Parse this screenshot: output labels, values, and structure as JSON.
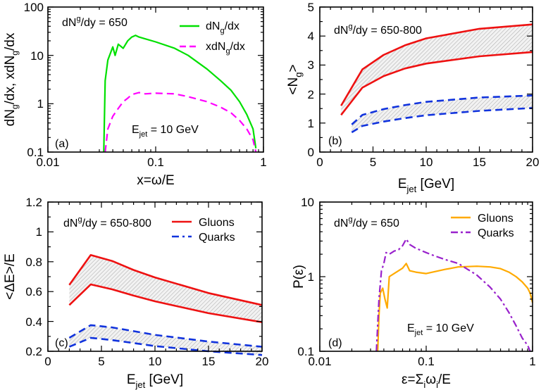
{
  "chart_data": [
    {
      "panel": "(a)",
      "type": "line",
      "xscale": "log",
      "yscale": "log",
      "xlim": [
        0.01,
        1
      ],
      "ylim": [
        0.1,
        100
      ],
      "xlabel": "x=ω/E",
      "ylabel": "dN_g/dx,  xdN_g/dx",
      "xticks": [
        "0.01",
        "0.1",
        "1"
      ],
      "yticks": [
        "0.1",
        "1",
        "10",
        "100"
      ],
      "annotation": "dN^g/dy = 650",
      "annotation2": "E_jet = 10 GeV",
      "series": [
        {
          "name": "dN_g/dx",
          "color": "#00e000",
          "style": "solid",
          "x": [
            0.033,
            0.034,
            0.036,
            0.038,
            0.04,
            0.042,
            0.045,
            0.05,
            0.055,
            0.06,
            0.065,
            0.07,
            0.08,
            0.1,
            0.15,
            0.2,
            0.3,
            0.4,
            0.5,
            0.6,
            0.7,
            0.8,
            0.85
          ],
          "y": [
            0.1,
            3,
            8,
            11,
            15,
            10,
            17,
            14,
            20,
            24,
            26,
            24,
            22,
            19,
            14,
            10,
            5.2,
            3.0,
            1.9,
            1.1,
            0.6,
            0.3,
            0.12
          ]
        },
        {
          "name": "xdN_g/dx",
          "color": "#ff00ff",
          "style": "dashed",
          "x": [
            0.034,
            0.036,
            0.04,
            0.045,
            0.05,
            0.055,
            0.06,
            0.07,
            0.08,
            0.1,
            0.15,
            0.2,
            0.3,
            0.4,
            0.5,
            0.6,
            0.7,
            0.8,
            0.85
          ],
          "y": [
            0.1,
            0.3,
            0.55,
            0.8,
            1.1,
            1.3,
            1.55,
            1.7,
            1.6,
            1.65,
            1.6,
            1.4,
            1.1,
            0.85,
            0.65,
            0.45,
            0.3,
            0.18,
            0.1
          ]
        }
      ]
    },
    {
      "panel": "(b)",
      "type": "line",
      "xlim": [
        0,
        20
      ],
      "ylim": [
        0,
        5
      ],
      "xlabel": "E_jet [GeV]",
      "ylabel": "<N_g>",
      "xticks": [
        "0",
        "5",
        "10",
        "15",
        "20"
      ],
      "yticks": [
        "0",
        "1",
        "2",
        "3",
        "4",
        "5"
      ],
      "annotation": "dN^g/dy = 650-800",
      "series": [
        {
          "name": "gluons upper",
          "color": "#ee1111",
          "style": "solid",
          "x": [
            2,
            4,
            6,
            8,
            10,
            15,
            20
          ],
          "y": [
            1.6,
            2.85,
            3.35,
            3.68,
            3.92,
            4.25,
            4.4
          ]
        },
        {
          "name": "gluons lower",
          "color": "#ee1111",
          "style": "solid",
          "x": [
            2,
            4,
            6,
            8,
            10,
            15,
            20
          ],
          "y": [
            1.28,
            2.22,
            2.62,
            2.88,
            3.05,
            3.3,
            3.45
          ]
        },
        {
          "name": "quarks upper",
          "color": "#1133dd",
          "style": "dashed",
          "x": [
            3,
            4,
            6,
            8,
            10,
            15,
            20
          ],
          "y": [
            0.95,
            1.28,
            1.48,
            1.62,
            1.73,
            1.88,
            1.95
          ]
        },
        {
          "name": "quarks lower",
          "color": "#1133dd",
          "style": "dashed",
          "x": [
            3,
            4,
            6,
            8,
            10,
            15,
            20
          ],
          "y": [
            0.68,
            0.9,
            1.05,
            1.17,
            1.27,
            1.42,
            1.52
          ]
        }
      ]
    },
    {
      "panel": "(c)",
      "type": "line",
      "xlim": [
        0,
        20
      ],
      "ylim": [
        0.2,
        1.2
      ],
      "xlabel": "E_jet [GeV]",
      "ylabel": "<ΔE>/E",
      "xticks": [
        "0",
        "5",
        "10",
        "15",
        "20"
      ],
      "yticks": [
        "0.2",
        "0.4",
        "0.6",
        "0.8",
        "1",
        "1.2"
      ],
      "annotation": "dN^g/dy = 650-800",
      "legend": [
        "Gluons",
        "Quarks"
      ],
      "series": [
        {
          "name": "gluons upper",
          "color": "#ee1111",
          "style": "solid",
          "x": [
            2,
            4,
            6,
            8,
            10,
            15,
            20
          ],
          "y": [
            0.645,
            0.845,
            0.805,
            0.745,
            0.695,
            0.59,
            0.51
          ]
        },
        {
          "name": "gluons lower",
          "color": "#ee1111",
          "style": "solid",
          "x": [
            2,
            4,
            6,
            8,
            10,
            15,
            20
          ],
          "y": [
            0.51,
            0.648,
            0.615,
            0.573,
            0.535,
            0.455,
            0.395
          ]
        },
        {
          "name": "quarks upper",
          "color": "#1133dd",
          "style": "dashed",
          "x": [
            2,
            4,
            6,
            8,
            10,
            15,
            20
          ],
          "y": [
            0.29,
            0.375,
            0.36,
            0.335,
            0.31,
            0.265,
            0.23
          ]
        },
        {
          "name": "quarks lower",
          "color": "#1133dd",
          "style": "dashed",
          "x": [
            2,
            4,
            6,
            8,
            10,
            15,
            20
          ],
          "y": [
            0.23,
            0.29,
            0.275,
            0.255,
            0.235,
            0.2,
            0.175
          ]
        }
      ]
    },
    {
      "panel": "(d)",
      "type": "line",
      "xscale": "log",
      "yscale": "log",
      "xlim": [
        0.01,
        1
      ],
      "ylim": [
        0.1,
        10
      ],
      "xlabel": "ε=Σ_iω_i/E",
      "ylabel": "P(ε)",
      "xticks": [
        "0.01",
        "0.1",
        "1"
      ],
      "yticks": [
        "0.1",
        "1",
        "10"
      ],
      "annotation": "dN^g/dy = 650",
      "annotation2": "E_jet = 10 GeV",
      "legend": [
        "Gluons",
        "Quarks"
      ],
      "series": [
        {
          "name": "Gluons",
          "color": "#ffaa00",
          "style": "solid",
          "x": [
            0.035,
            0.036,
            0.037,
            0.039,
            0.041,
            0.043,
            0.045,
            0.05,
            0.055,
            0.06,
            0.065,
            0.07,
            0.08,
            0.1,
            0.15,
            0.2,
            0.3,
            0.4,
            0.5,
            0.6,
            0.7,
            0.8,
            0.9,
            0.95,
            1.0
          ],
          "y": [
            0.1,
            0.3,
            0.6,
            0.7,
            0.5,
            0.38,
            1.0,
            1.1,
            1.2,
            1.3,
            1.5,
            1.2,
            1.15,
            1.1,
            1.25,
            1.35,
            1.38,
            1.35,
            1.28,
            1.15,
            1.0,
            0.85,
            0.7,
            0.6,
            0.45
          ]
        },
        {
          "name": "Quarks",
          "color": "#9922cc",
          "style": "dashdot",
          "x": [
            0.034,
            0.036,
            0.038,
            0.04,
            0.042,
            0.045,
            0.05,
            0.055,
            0.06,
            0.065,
            0.07,
            0.08,
            0.1,
            0.12,
            0.15,
            0.2,
            0.3,
            0.4,
            0.5,
            0.6,
            0.7,
            0.8,
            0.9,
            0.95
          ],
          "y": [
            0.1,
            0.5,
            1.2,
            1.5,
            2.1,
            2.0,
            2.2,
            2.3,
            2.6,
            3.2,
            2.7,
            2.4,
            2.1,
            1.9,
            1.7,
            1.5,
            1.05,
            0.72,
            0.5,
            0.33,
            0.22,
            0.15,
            0.12,
            0.1
          ]
        }
      ]
    }
  ]
}
